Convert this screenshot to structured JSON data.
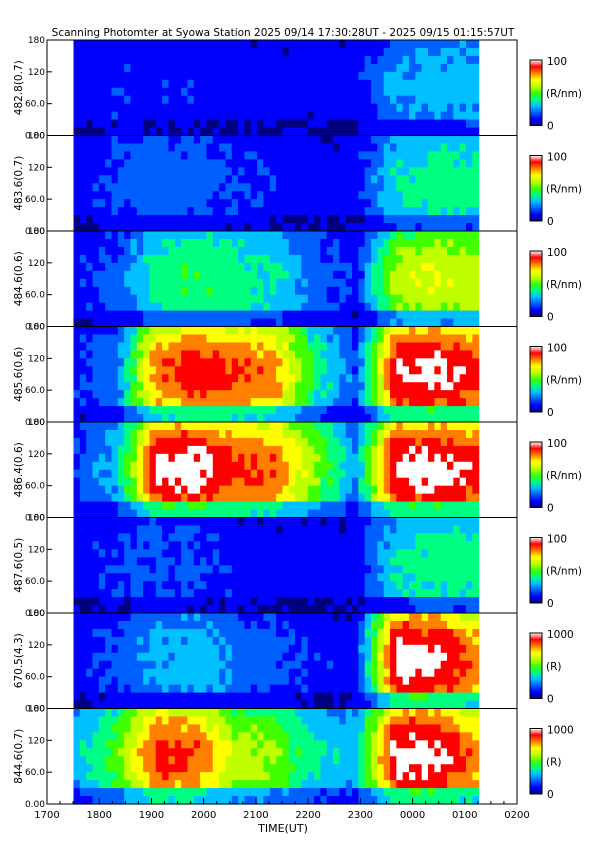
{
  "title": "Scanning Photomter at Syowa Station  2025 09/14 17:30:28UT - 2025 09/15 01:15:57UT",
  "chart_data": {
    "type": "heatmap",
    "xlabel": "TIME(UT)",
    "x_ticks": [
      "1700",
      "1800",
      "1900",
      "2000",
      "2100",
      "2200",
      "2300",
      "0000",
      "0100",
      "0200"
    ],
    "x_range_hours": [
      17.0,
      26.0
    ],
    "data_coverage": {
      "start": "17:30:28",
      "end": "01:15:57"
    },
    "y_ticks": [
      "0.00",
      "60.0",
      "120",
      "180"
    ],
    "y_range": [
      0,
      180
    ],
    "colorscale": [
      "#000080",
      "#0000ff",
      "#0060ff",
      "#00c0ff",
      "#00ff80",
      "#40ff00",
      "#c0ff00",
      "#ffff00",
      "#ff8000",
      "#ff0000",
      "#ffffff"
    ],
    "panels": [
      {
        "label": "482.8(0.7)",
        "cbar_max": "100",
        "cbar_min": "0",
        "unit": "(R/nm)",
        "intensity": [
          0.1,
          0.14,
          0.12,
          0.12,
          0.1,
          0.1,
          0.1,
          0.1,
          0.25,
          0.3,
          0.3
        ]
      },
      {
        "label": "483.6(0.7)",
        "cbar_max": "100",
        "cbar_min": "0",
        "unit": "(R/nm)",
        "intensity": [
          0.1,
          0.16,
          0.22,
          0.2,
          0.14,
          0.12,
          0.1,
          0.1,
          0.35,
          0.4,
          0.4
        ]
      },
      {
        "label": "484.6(0.6)",
        "cbar_max": "100",
        "cbar_min": "0",
        "unit": "(R/nm)",
        "intensity": [
          0.12,
          0.18,
          0.4,
          0.45,
          0.4,
          0.36,
          0.2,
          0.12,
          0.6,
          0.65,
          0.6
        ]
      },
      {
        "label": "485.6(0.6)",
        "cbar_max": "100",
        "cbar_min": "0",
        "unit": "(R/nm)",
        "intensity": [
          0.14,
          0.22,
          0.82,
          0.92,
          0.86,
          0.8,
          0.4,
          0.18,
          0.95,
          0.98,
          0.9
        ]
      },
      {
        "label": "486.4(0.6)",
        "cbar_max": "100",
        "cbar_min": "0",
        "unit": "(R/nm)",
        "intensity": [
          0.16,
          0.3,
          0.98,
          0.99,
          0.88,
          0.84,
          0.55,
          0.25,
          0.99,
          0.99,
          0.92
        ]
      },
      {
        "label": "487.6(0.5)",
        "cbar_max": "100",
        "cbar_min": "0",
        "unit": "(R/nm)",
        "intensity": [
          0.1,
          0.14,
          0.18,
          0.16,
          0.12,
          0.1,
          0.1,
          0.1,
          0.35,
          0.4,
          0.4
        ]
      },
      {
        "label": "670.5(4.3)",
        "cbar_max": "1000",
        "cbar_min": "0",
        "unit": "(R)",
        "intensity": [
          0.1,
          0.18,
          0.28,
          0.3,
          0.22,
          0.18,
          0.12,
          0.1,
          0.99,
          0.99,
          0.8
        ]
      },
      {
        "label": "844.6(0.7)",
        "cbar_max": "1000",
        "cbar_min": "0",
        "unit": "(R)",
        "intensity": [
          0.3,
          0.5,
          0.9,
          0.85,
          0.6,
          0.55,
          0.35,
          0.3,
          0.99,
          0.99,
          0.8
        ]
      }
    ]
  }
}
